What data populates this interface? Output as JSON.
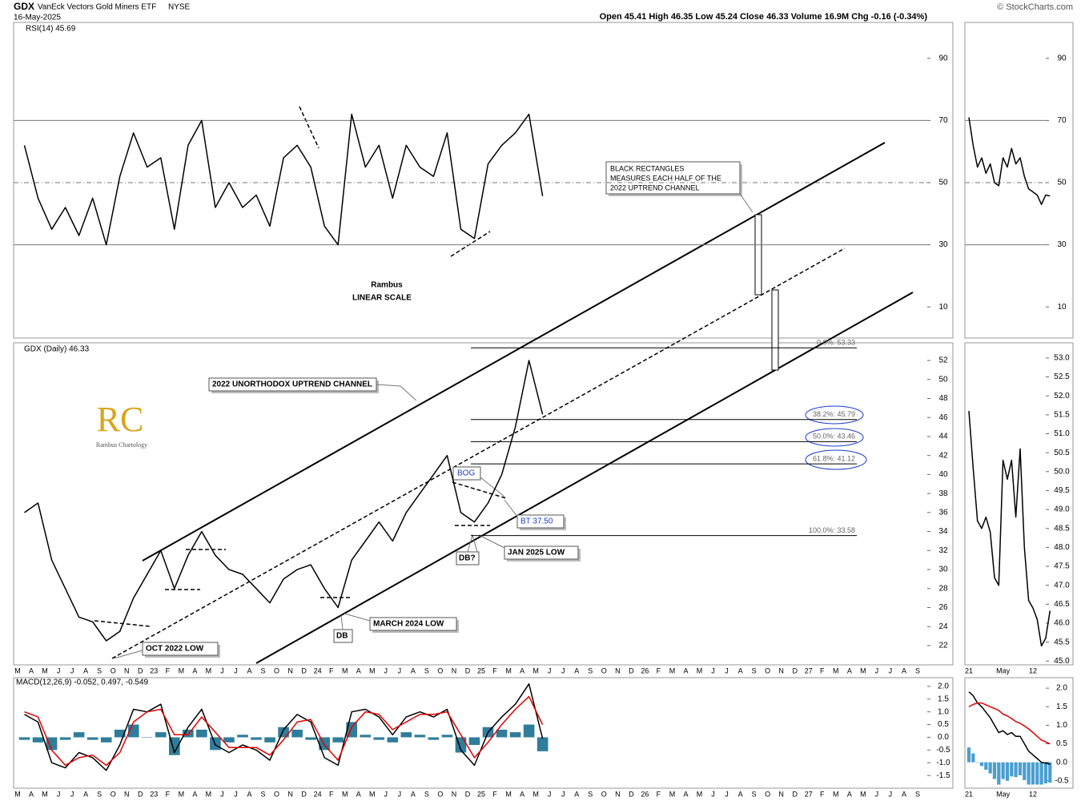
{
  "header": {
    "symbol": "GDX",
    "name": "VanEck Vectors Gold Miners ETF",
    "exchange": "NYSE",
    "date": "16-May-2025",
    "quote": "Open 45.41 High 46.35 Low 45.24 Close 46.33 Volume 16.9M Chg -0.16 (-0.34%)",
    "credit": "© StockCharts.com"
  },
  "annotations": {
    "rect_note": [
      "BLACK RECTANGLES",
      "MEASURES EACH HALF OF THE",
      "2022 UPTREND CHANNEL"
    ],
    "rambus": "Rambus",
    "scale": "LINEAR SCALE",
    "channel": "2022  UNORTHODOX UPTREND CHANNEL",
    "bog": "BOG",
    "bt": "BT 37.50",
    "jan_low": "JAN 2025 LOW",
    "db1": "DB?",
    "march_low": "MARCH 2024 LOW",
    "db2": "DB",
    "oct_low": "OCT 2022 LOW",
    "logo_mark": "RC",
    "logo_text": "Rambus Chartology"
  },
  "chart_data": [
    {
      "type": "line",
      "title": "RSI(14) 45.69",
      "color": "#000000",
      "values": [
        62,
        45,
        35,
        42,
        33,
        45,
        30,
        52,
        66,
        55,
        58,
        35,
        62,
        70,
        42,
        50,
        42,
        46,
        36,
        58,
        62,
        55,
        36,
        30,
        72,
        55,
        62,
        45,
        62,
        55,
        52,
        66,
        35,
        32,
        56,
        62,
        66,
        72,
        45.69,
        null,
        null,
        null,
        null,
        null,
        null,
        null,
        null,
        null,
        null,
        null,
        null,
        null,
        null,
        null,
        null,
        null,
        null,
        null,
        null,
        null,
        null,
        null,
        null,
        null,
        null,
        null,
        null
      ],
      "ylim": [
        0,
        100
      ],
      "yticks": [
        10,
        30,
        50,
        70,
        90
      ],
      "hlines": [
        70,
        50,
        30
      ]
    },
    {
      "type": "line",
      "title": "GDX (Daily) 46.33",
      "color": "#000000",
      "categories": [
        "M",
        "A",
        "M",
        "J",
        "J",
        "A",
        "S",
        "O",
        "N",
        "D",
        "23",
        "F",
        "M",
        "A",
        "M",
        "J",
        "J",
        "A",
        "S",
        "O",
        "N",
        "D",
        "24",
        "F",
        "M",
        "A",
        "M",
        "J",
        "J",
        "A",
        "S",
        "O",
        "N",
        "D",
        "25",
        "F",
        "M",
        "A",
        "M",
        "J",
        "J",
        "A",
        "S",
        "O",
        "N",
        "D",
        "26",
        "F",
        "M",
        "A",
        "M",
        "J",
        "J",
        "A",
        "S",
        "O",
        "N",
        "D",
        "27",
        "F",
        "M",
        "A",
        "M",
        "J",
        "J",
        "A",
        "S"
      ],
      "values": [
        36,
        37,
        31,
        28,
        25,
        24.5,
        22.5,
        23.5,
        27,
        29.5,
        32,
        28,
        31.5,
        34,
        31.5,
        30,
        29.5,
        28,
        26.5,
        29,
        30,
        30.5,
        28,
        26,
        31,
        33,
        35,
        33,
        36,
        38,
        40,
        42,
        36,
        35,
        37,
        40,
        45,
        52,
        46.33,
        null,
        null,
        null,
        null,
        null,
        null,
        null,
        null,
        null,
        null,
        null,
        null,
        null,
        null,
        null,
        null,
        null,
        null,
        null,
        null,
        null,
        null,
        null,
        null,
        null,
        null,
        null,
        null
      ],
      "ylim": [
        20,
        54
      ],
      "yticks": [
        22,
        24,
        26,
        28,
        30,
        32,
        34,
        36,
        38,
        40,
        42,
        44,
        46,
        48,
        50,
        52
      ],
      "fib": [
        {
          "value": 53.33,
          "label": "0.0%: 53.33"
        },
        {
          "value": 45.79,
          "label": "38.2%: 45.79"
        },
        {
          "value": 43.46,
          "label": "50.0%: 43.46"
        },
        {
          "value": 41.12,
          "label": "61.8%: 41.12"
        },
        {
          "value": 33.58,
          "label": "100.0%: 33.58"
        }
      ]
    },
    {
      "type": "line",
      "title": "MACD(12,26,9) -0.052, 0.497, -0.549",
      "categories": [
        "M",
        "A",
        "M",
        "J",
        "J",
        "A",
        "S",
        "O",
        "N",
        "D",
        "23",
        "F",
        "M",
        "A",
        "M",
        "J",
        "J",
        "A",
        "S",
        "O",
        "N",
        "D",
        "24",
        "F",
        "M",
        "A",
        "M",
        "J",
        "J",
        "A",
        "S",
        "O",
        "N",
        "D",
        "25",
        "F",
        "M",
        "A",
        "M",
        "J",
        "J",
        "A",
        "S",
        "O",
        "N",
        "D",
        "26",
        "F",
        "M",
        "A",
        "M",
        "J",
        "J",
        "A",
        "S",
        "O",
        "N",
        "D",
        "27",
        "F",
        "M",
        "A",
        "M",
        "J",
        "J",
        "A",
        "S"
      ],
      "series": [
        {
          "type": "bar",
          "color": "#2f7d9a",
          "values": [
            -0.1,
            -0.2,
            -0.5,
            -0.1,
            0.2,
            -0.1,
            -0.2,
            0.3,
            0.5,
            0,
            0.2,
            -0.7,
            0.3,
            0.3,
            -0.5,
            -0.2,
            0.1,
            -0.1,
            -0.2,
            0.4,
            0.3,
            -0.1,
            -0.5,
            -0.2,
            0.6,
            0.1,
            -0.1,
            -0.2,
            0.2,
            0.1,
            -0.1,
            0.1,
            -0.6,
            -0.3,
            0.4,
            0.3,
            0.2,
            0.5,
            -0.549,
            null,
            null,
            null,
            null,
            null,
            null,
            null,
            null,
            null,
            null,
            null,
            null,
            null,
            null,
            null,
            null,
            null,
            null,
            null,
            null,
            null,
            null,
            null,
            null,
            null,
            null,
            null,
            null
          ]
        },
        {
          "type": "line",
          "color": "#000000",
          "values": [
            0.9,
            0.6,
            -1.0,
            -1.2,
            -0.6,
            -0.8,
            -1.3,
            -0.3,
            1.1,
            1.0,
            1.3,
            -0.6,
            0.4,
            1.1,
            -0.3,
            -0.6,
            -0.3,
            -0.5,
            -0.9,
            0.3,
            0.9,
            0.6,
            -0.8,
            -1.1,
            1.0,
            1.1,
            0.8,
            0.1,
            0.8,
            1.0,
            0.8,
            1.1,
            -0.5,
            -1.1,
            0.2,
            0.8,
            1.3,
            2.1,
            -0.052,
            null,
            null,
            null,
            null,
            null,
            null,
            null,
            null,
            null,
            null,
            null,
            null,
            null,
            null,
            null,
            null,
            null,
            null,
            null,
            null,
            null,
            null,
            null,
            null,
            null,
            null,
            null,
            null
          ]
        },
        {
          "type": "line",
          "color": "#e00000",
          "values": [
            1.0,
            0.8,
            -0.5,
            -1.1,
            -0.8,
            -0.7,
            -1.1,
            -0.6,
            0.6,
            1.0,
            1.1,
            0.1,
            0.1,
            0.8,
            0.2,
            -0.4,
            -0.4,
            -0.4,
            -0.7,
            -0.1,
            0.6,
            0.7,
            -0.3,
            -0.9,
            0.4,
            1.0,
            0.9,
            0.3,
            0.6,
            0.9,
            0.9,
            1.0,
            0.1,
            -0.8,
            -0.2,
            0.5,
            1.1,
            1.6,
            0.497,
            null,
            null,
            null,
            null,
            null,
            null,
            null,
            null,
            null,
            null,
            null,
            null,
            null,
            null,
            null,
            null,
            null,
            null,
            null,
            null,
            null,
            null,
            null,
            null,
            null,
            null,
            null,
            null
          ]
        }
      ],
      "ylim": [
        -2.0,
        2.25
      ],
      "yticks": [
        {
          "value": 2,
          "label": "2.0"
        },
        1.5,
        {
          "value": 1,
          "label": "1.0"
        },
        0.5,
        {
          "value": 0,
          "label": "0.0"
        },
        -0.5,
        {
          "value": -1,
          "label": "-1.0"
        },
        -1.5
      ]
    },
    {
      "type": "line",
      "color": "#000000",
      "values": [
        71,
        62,
        55,
        58,
        53,
        56,
        50,
        49,
        58,
        55,
        61,
        56,
        58,
        52,
        48,
        47,
        46,
        43,
        46,
        45.69
      ],
      "ylim": [
        0,
        100
      ],
      "yticks": [
        10,
        30,
        50,
        70,
        90
      ],
      "hlines": [
        70,
        50,
        30
      ]
    },
    {
      "type": "line",
      "color": "#000000",
      "categories": [
        "21",
        null,
        null,
        null,
        null,
        null,
        null,
        null,
        "May",
        null,
        null,
        null,
        null,
        null,
        null,
        "12",
        null,
        null,
        null,
        null
      ],
      "values": [
        51.6,
        50.1,
        48.7,
        48.5,
        48.8,
        48.4,
        47.2,
        47.0,
        50.3,
        49.8,
        50.3,
        48.8,
        50.6,
        48.0,
        46.6,
        46.4,
        46.1,
        45.4,
        45.6,
        46.33
      ],
      "ylim": [
        44.9,
        53.4
      ],
      "yticks": [
        {
          "value": 45,
          "label": "45.0"
        },
        45.5,
        {
          "value": 46,
          "label": "46.0"
        },
        46.5,
        {
          "value": 47,
          "label": "47.0"
        },
        47.5,
        {
          "value": 48,
          "label": "48.0"
        },
        48.5,
        {
          "value": 49,
          "label": "49.0"
        },
        49.5,
        {
          "value": 50,
          "label": "50.0"
        },
        50.5,
        {
          "value": 51,
          "label": "51.0"
        },
        51.5,
        {
          "value": 52,
          "label": "52.0"
        },
        52.5,
        {
          "value": 53,
          "label": "53.0"
        }
      ]
    },
    {
      "type": "line",
      "categories": [
        "21",
        null,
        null,
        null,
        null,
        null,
        null,
        null,
        "May",
        null,
        null,
        null,
        null,
        null,
        null,
        "12",
        null,
        null,
        null,
        null
      ],
      "series": [
        {
          "type": "bar",
          "color": "#4a9fd0",
          "values": [
            0.4,
            0.24,
            0,
            -0.1,
            -0.2,
            -0.3,
            -0.45,
            -0.6,
            -0.45,
            -0.5,
            -0.38,
            -0.4,
            -0.35,
            -0.48,
            -0.6,
            -0.6,
            -0.6,
            -0.6,
            -0.57,
            -0.549
          ]
        },
        {
          "type": "line",
          "color": "#000000",
          "values": [
            1.9,
            1.8,
            1.6,
            1.5,
            1.35,
            1.2,
            1.0,
            0.8,
            0.85,
            0.75,
            0.8,
            0.7,
            0.7,
            0.5,
            0.3,
            0.2,
            0.1,
            0.0,
            -0.02,
            -0.052
          ]
        },
        {
          "type": "line",
          "color": "#e00000",
          "values": [
            1.5,
            1.56,
            1.6,
            1.6,
            1.55,
            1.5,
            1.45,
            1.4,
            1.3,
            1.25,
            1.18,
            1.1,
            1.05,
            0.98,
            0.9,
            0.8,
            0.7,
            0.6,
            0.55,
            0.497
          ]
        }
      ],
      "ylim": [
        -0.72,
        2.24
      ],
      "yticks": [
        {
          "value": 2,
          "label": "2.0"
        },
        1.5,
        {
          "value": 1,
          "label": "1.0"
        },
        0.5,
        {
          "value": 0,
          "label": "0.0"
        },
        -0.5
      ]
    }
  ]
}
